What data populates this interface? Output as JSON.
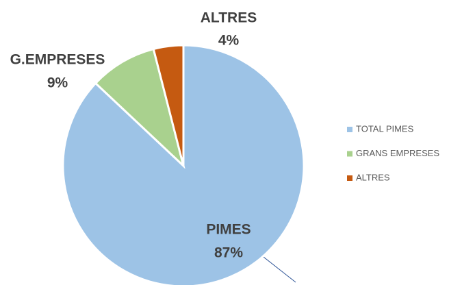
{
  "chart_data": {
    "type": "pie",
    "categories": [
      "TOTAL PIMES",
      "GRANS EMPRESES",
      "ALTRES"
    ],
    "labels": [
      "PIMES",
      "G.EMPRESES",
      "ALTRES"
    ],
    "values": [
      87,
      9,
      4
    ],
    "value_labels": [
      "87%",
      "9%",
      "4%"
    ],
    "colors": [
      "#9dc3e6",
      "#a9d18e",
      "#c55a11"
    ],
    "legend": "right"
  }
}
